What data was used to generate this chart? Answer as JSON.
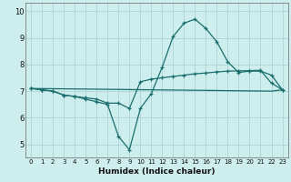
{
  "xlabel": "Humidex (Indice chaleur)",
  "bg_color": "#ceeeed",
  "grid_color": "#b0d8d8",
  "line_color": "#1a6e6e",
  "xlim": [
    -0.5,
    23.5
  ],
  "ylim": [
    4.5,
    10.3
  ],
  "yticks": [
    5,
    6,
    7,
    8,
    9,
    10
  ],
  "xticks": [
    0,
    1,
    2,
    3,
    4,
    5,
    6,
    7,
    8,
    9,
    10,
    11,
    12,
    13,
    14,
    15,
    16,
    17,
    18,
    19,
    20,
    21,
    22,
    23
  ],
  "line1_x": [
    0,
    1,
    2,
    3,
    4,
    5,
    6,
    7,
    8,
    9,
    10,
    11,
    12,
    13,
    14,
    15,
    16,
    17,
    18,
    19,
    20,
    21,
    22,
    23
  ],
  "line1_y": [
    7.1,
    7.05,
    7.0,
    6.85,
    6.8,
    6.7,
    6.6,
    6.5,
    5.3,
    4.8,
    6.35,
    6.9,
    7.9,
    9.05,
    9.55,
    9.7,
    9.35,
    8.85,
    8.1,
    7.7,
    7.75,
    7.75,
    7.6,
    7.05
  ],
  "line2_x": [
    0,
    1,
    2,
    3,
    4,
    5,
    6,
    7,
    8,
    9,
    10,
    11,
    12,
    13,
    14,
    15,
    16,
    17,
    18,
    19,
    20,
    21,
    22,
    23
  ],
  "line2_y": [
    7.1,
    7.05,
    7.0,
    6.85,
    6.8,
    6.75,
    6.7,
    6.55,
    6.55,
    6.35,
    7.35,
    7.45,
    7.5,
    7.55,
    7.6,
    7.65,
    7.68,
    7.72,
    7.75,
    7.76,
    7.77,
    7.78,
    7.3,
    7.05
  ],
  "line3_x": [
    0,
    22,
    23
  ],
  "line3_y": [
    7.1,
    7.0,
    7.05
  ]
}
